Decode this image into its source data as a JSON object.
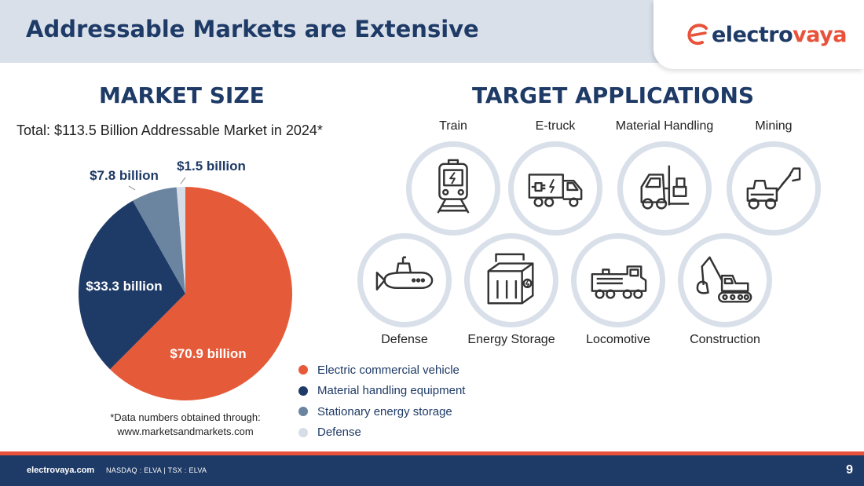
{
  "header": {
    "title": "Addressable Markets are Extensive",
    "logo_prefix": "electro",
    "logo_suffix": "vaya"
  },
  "left": {
    "heading": "MARKET SIZE",
    "subtitle": "Total: $113.5 Billion Addressable Market in 2024*",
    "note_line1": "*Data numbers obtained through:",
    "note_line2": "www.marketsandmarkets.com"
  },
  "chart_data": {
    "type": "pie",
    "unit": "billion",
    "slices": [
      {
        "name": "Electric commercial vehicle",
        "value": 70.9,
        "label": "$70.9 billion",
        "color": "#e55a38"
      },
      {
        "name": "Material handling equipment",
        "value": 33.3,
        "label": "$33.3 billion",
        "color": "#1e3a66"
      },
      {
        "name": "Stationary energy storage",
        "value": 7.8,
        "label": "$7.8 billion",
        "color": "#6b85a0"
      },
      {
        "name": "Defense",
        "value": 1.5,
        "label": "$1.5 billion",
        "color": "#d6dde7"
      }
    ],
    "legend_position": "bottom-right"
  },
  "right": {
    "heading": "TARGET APPLICATIONS",
    "apps": [
      {
        "label": "Train",
        "icon": "train-icon"
      },
      {
        "label": "E-truck",
        "icon": "electric-truck-icon"
      },
      {
        "label": "Material Handling",
        "icon": "forklift-icon"
      },
      {
        "label": "Mining",
        "icon": "mining-loader-icon"
      },
      {
        "label": "Defense",
        "icon": "submarine-icon"
      },
      {
        "label": "Energy Storage",
        "icon": "battery-storage-icon"
      },
      {
        "label": "Locomotive",
        "icon": "locomotive-icon"
      },
      {
        "label": "Construction",
        "icon": "excavator-icon"
      }
    ]
  },
  "footer": {
    "site": "electrovaya.com",
    "ticker": "NASDAQ : ELVA  |  TSX : ELVA",
    "page": "9"
  },
  "colors": {
    "navy": "#1e3a66",
    "accent": "#e8523a",
    "band": "#d9e0ea"
  }
}
